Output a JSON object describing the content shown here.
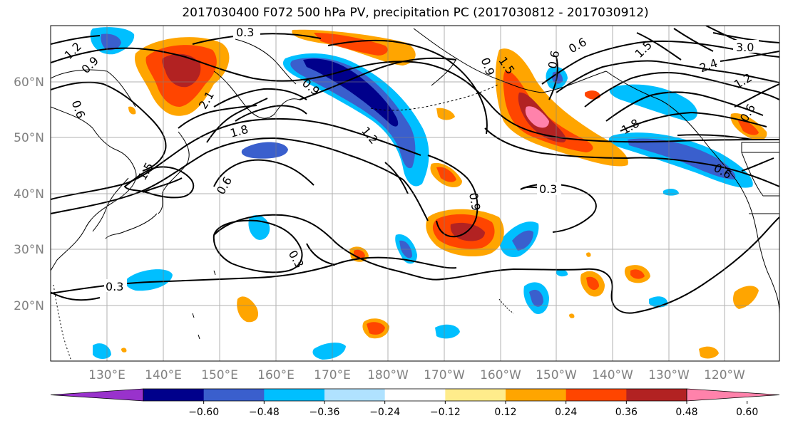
{
  "title": "2017030400 F072 500 hPa PV, precipitation PC (2017030812 - 2017030912)",
  "x_ticks": [
    "130°E",
    "140°E",
    "150°E",
    "160°E",
    "170°E",
    "180°W",
    "170°W",
    "160°W",
    "150°W",
    "140°W",
    "130°W",
    "120°W"
  ],
  "y_ticks": [
    "60°N",
    "50°N",
    "40°N",
    "30°N",
    "20°N"
  ],
  "colorbar": {
    "colors": [
      "#9932cc",
      "#00008b",
      "#3a5fcd",
      "#00bfff",
      "#b0e2ff",
      "#ffffff",
      "#ffec8b",
      "#ffa500",
      "#ff4500",
      "#b22222",
      "#ff82ab"
    ],
    "tick_labels": [
      "−0.60",
      "−0.48",
      "−0.36",
      "−0.24",
      "−0.12",
      "0.12",
      "0.24",
      "0.36",
      "0.48",
      "0.60"
    ]
  },
  "contour_labels": [
    "0.3",
    "1.2",
    "0.9",
    "0.6",
    "2.1",
    "0.9",
    "1.5",
    "1.8",
    "1.2",
    "0.6",
    "0.3",
    "0.3",
    "0.3",
    "0.9",
    "1.5",
    "1.8",
    "0.6",
    "0.6",
    "2.4",
    "3.0",
    "1.2",
    "0.6",
    "0.9",
    "0.6",
    "1.5"
  ]
}
